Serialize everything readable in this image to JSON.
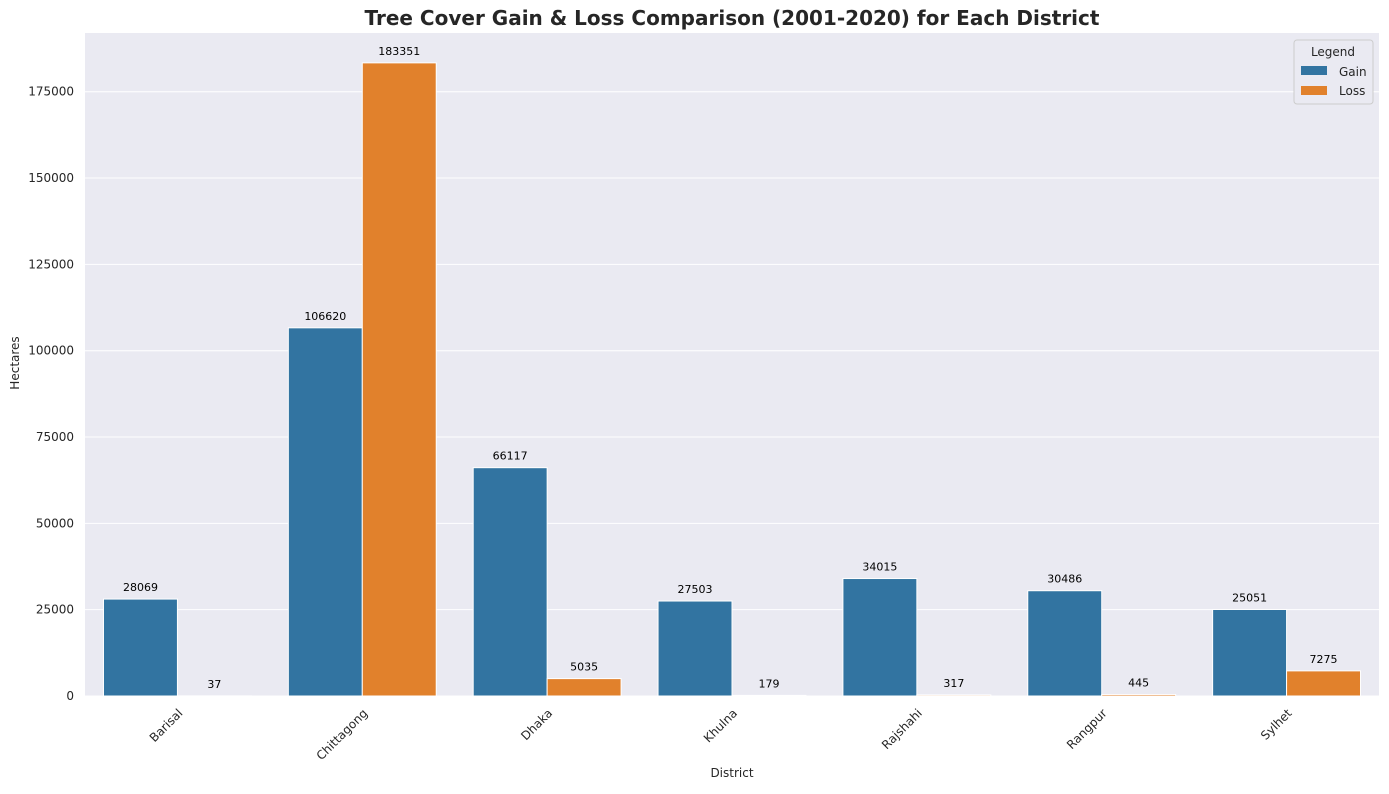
{
  "chart_data": {
    "type": "bar",
    "title": "Tree Cover Gain & Loss Comparison (2001-2020) for Each District",
    "xlabel": "District",
    "ylabel": "Hectares",
    "categories": [
      "Barisal",
      "Chittagong",
      "Dhaka",
      "Khulna",
      "Rajshahi",
      "Rangpur",
      "Sylhet"
    ],
    "series": [
      {
        "name": "Gain",
        "color": "#3274a1",
        "values": [
          28069,
          106620,
          66117,
          27503,
          34015,
          30486,
          25051
        ]
      },
      {
        "name": "Loss",
        "color": "#e1812c",
        "values": [
          37,
          183351,
          5035,
          179,
          317,
          445,
          7275
        ]
      }
    ],
    "ylim": [
      0,
      192000
    ],
    "yticks": [
      0,
      25000,
      50000,
      75000,
      100000,
      125000,
      150000,
      175000
    ],
    "grid": true,
    "legend": {
      "title": "Legend",
      "position": "top-right"
    },
    "background": "#eaeaf2",
    "data_labels": true
  }
}
